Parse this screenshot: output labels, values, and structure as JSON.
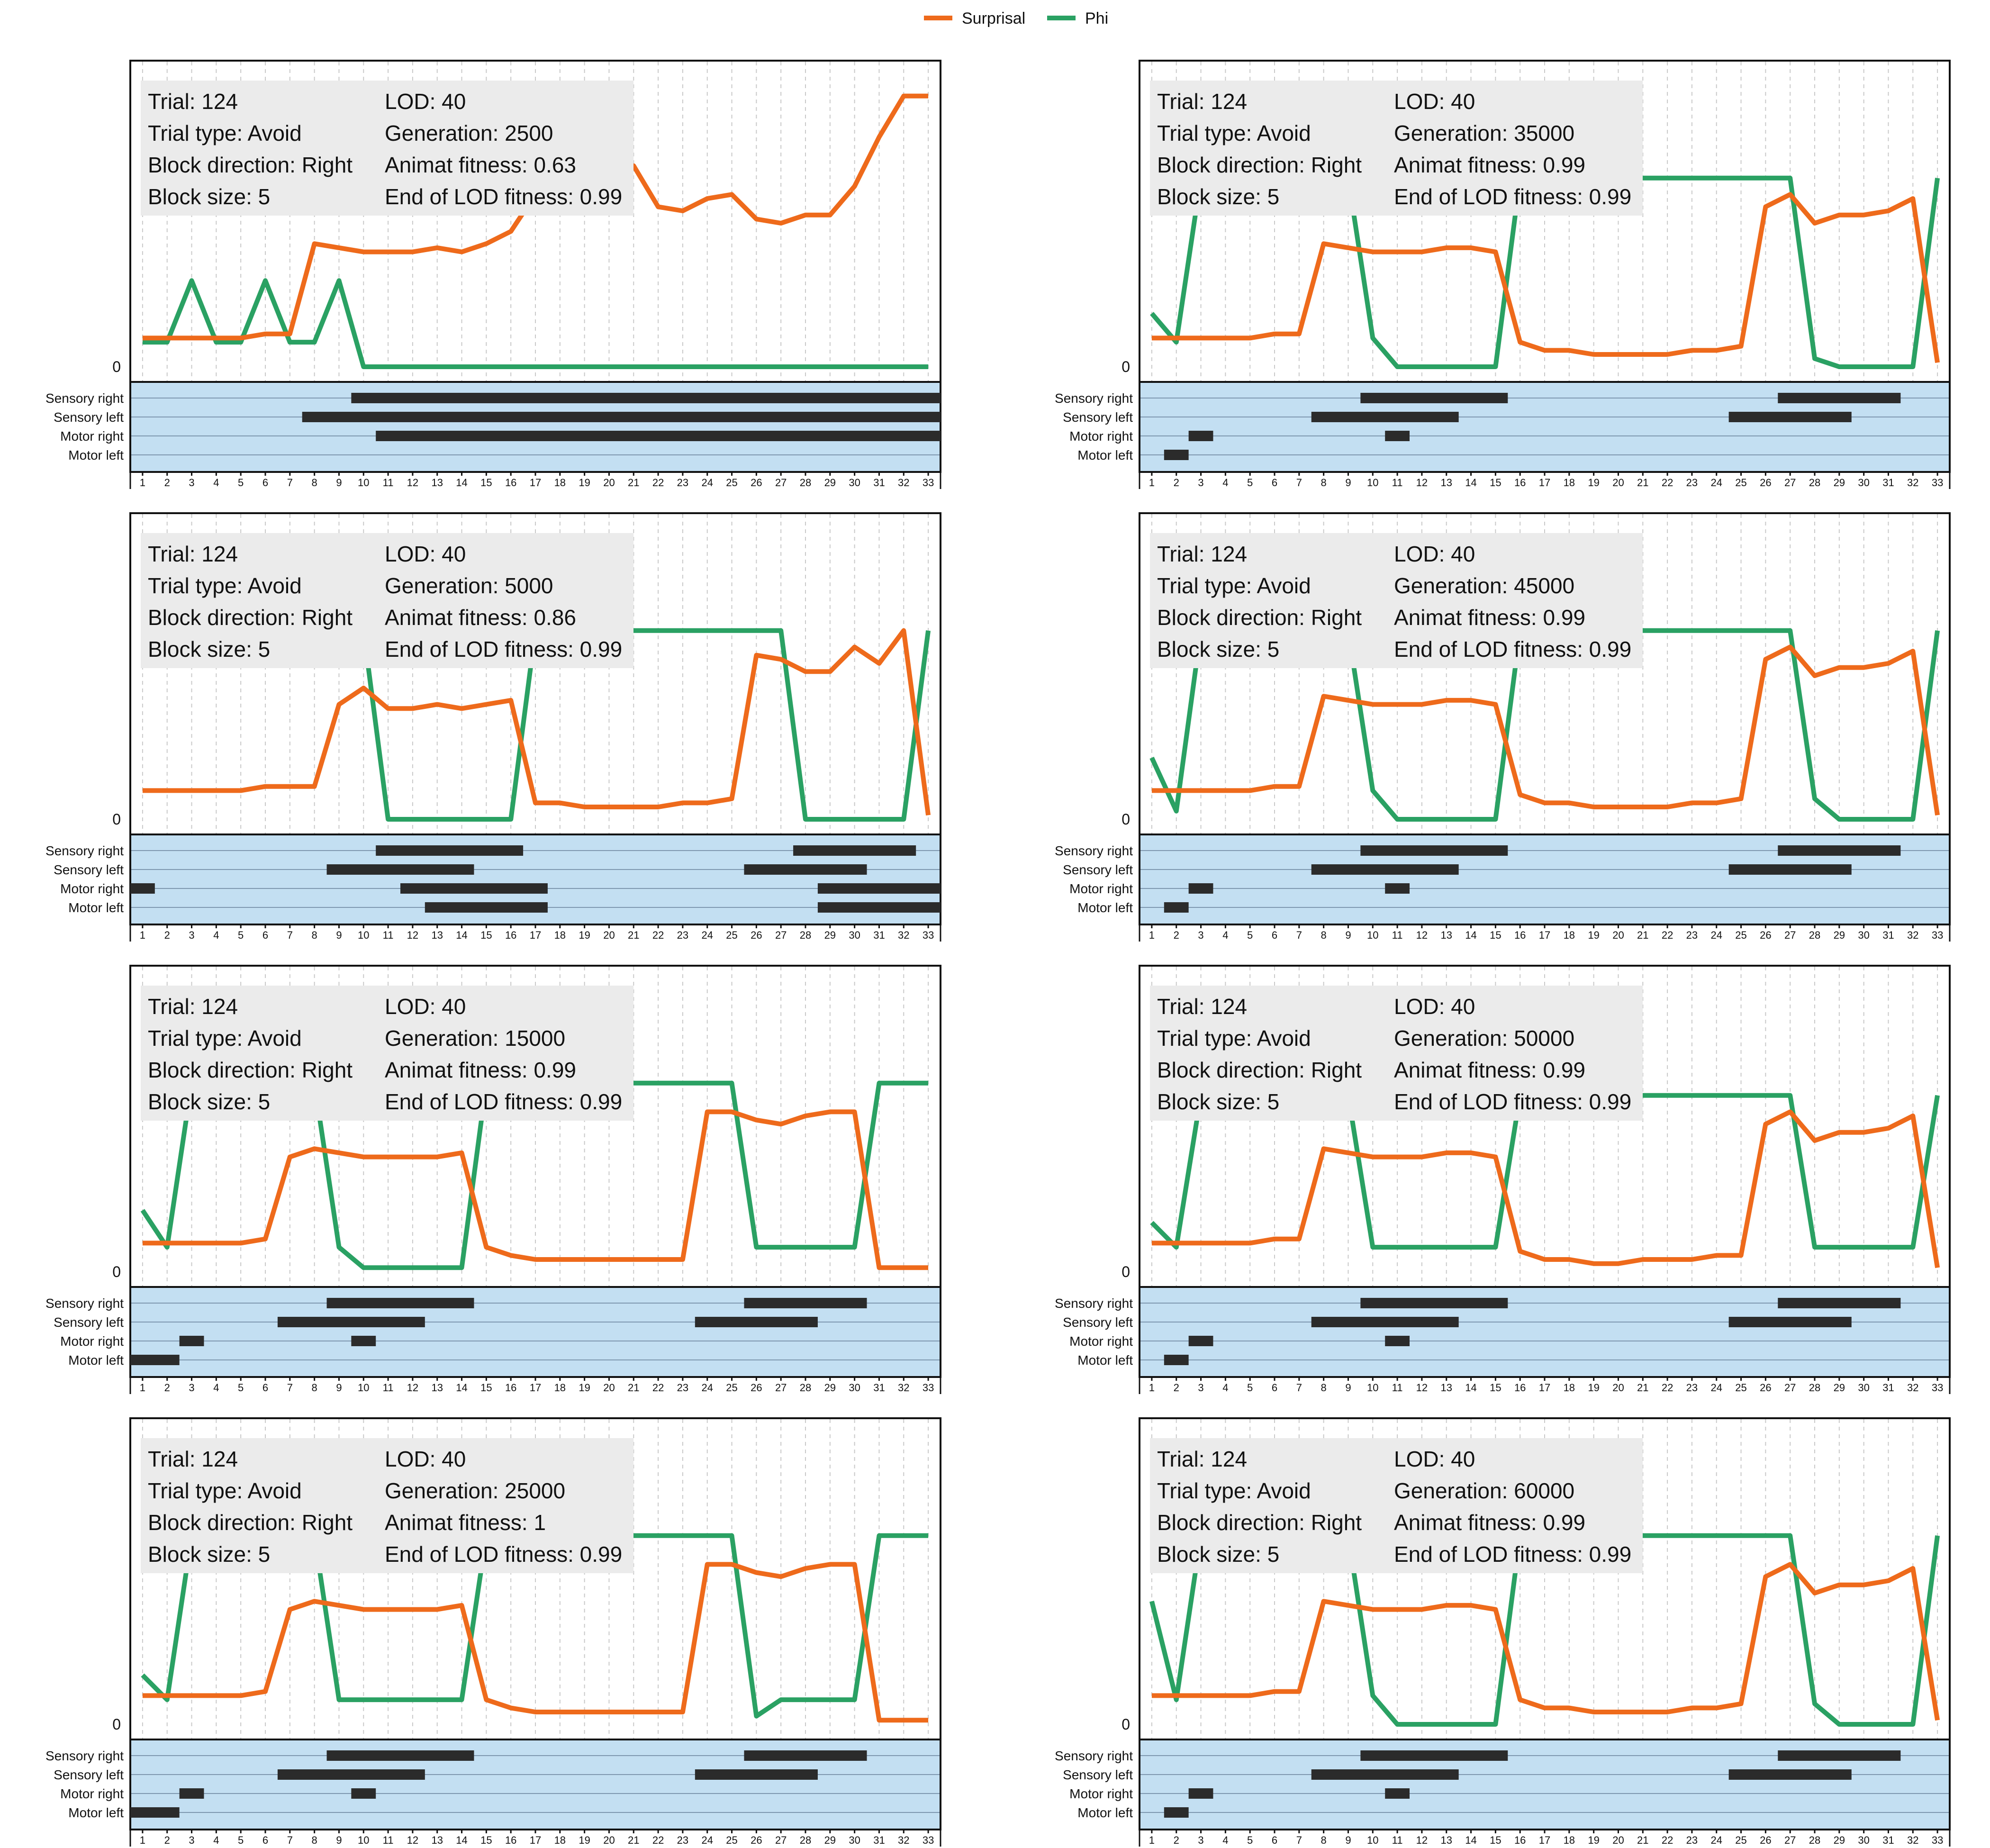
{
  "legend": {
    "surprisal_label": "Surprisal",
    "phi_label": "Phi",
    "surprisal_color": "#ee6a1b",
    "phi_color": "#2aa163"
  },
  "labels": {
    "trial": "Trial: ",
    "trial_type": "Trial type: ",
    "block_direction": "Block direction: ",
    "block_size": "Block size: ",
    "lod": "LOD: ",
    "generation": "Generation: ",
    "animat_fitness": "Animat fitness: ",
    "end_fitness": "End of LOD fitness: ",
    "zero": "0"
  },
  "rows": [
    "Sensory right",
    "Sensory left",
    "Motor right",
    "Motor left"
  ],
  "x_ticks": [
    1,
    2,
    3,
    4,
    5,
    6,
    7,
    8,
    9,
    10,
    11,
    12,
    13,
    14,
    15,
    16,
    17,
    18,
    19,
    20,
    21,
    22,
    23,
    24,
    25,
    26,
    27,
    28,
    29,
    30,
    31,
    32,
    33
  ],
  "chart_data": [
    {
      "type": "line",
      "info": {
        "trial": "124",
        "trial_type": "Avoid",
        "block_direction": "Right",
        "block_size": "5",
        "lod": "40",
        "generation": "2500",
        "animat_fitness": "0.63",
        "end_fitness": "0.99"
      },
      "series": [
        {
          "name": "Surprisal",
          "values": [
            0.07,
            0.07,
            0.07,
            0.07,
            0.07,
            0.08,
            0.08,
            0.3,
            0.29,
            0.28,
            0.28,
            0.28,
            0.29,
            0.28,
            0.3,
            0.33,
            0.42,
            0.48,
            0.58,
            0.47,
            0.49,
            0.39,
            0.38,
            0.41,
            0.42,
            0.36,
            0.35,
            0.37,
            0.37,
            0.44,
            0.56,
            0.66,
            0.66
          ]
        },
        {
          "name": "Phi",
          "values": [
            0.06,
            0.06,
            0.21,
            0.06,
            0.06,
            0.21,
            0.06,
            0.06,
            0.21,
            0,
            0,
            0,
            0,
            0,
            0,
            0,
            0,
            0,
            0,
            0,
            0,
            0,
            0,
            0,
            0,
            0,
            0,
            0,
            0,
            0,
            0,
            0,
            0
          ]
        }
      ],
      "bars": {
        "Sensory right": [
          [
            9.5,
            33.5
          ]
        ],
        "Sensory left": [
          [
            7.5,
            33.5
          ]
        ],
        "Motor right": [
          [
            10.5,
            33.5
          ]
        ],
        "Motor left": []
      }
    },
    {
      "type": "line",
      "info": {
        "trial": "124",
        "trial_type": "Avoid",
        "block_direction": "Right",
        "block_size": "5",
        "lod": "40",
        "generation": "35000",
        "animat_fitness": "0.99",
        "end_fitness": "0.99"
      },
      "series": [
        {
          "name": "Surprisal",
          "values": [
            0.07,
            0.07,
            0.07,
            0.07,
            0.07,
            0.08,
            0.08,
            0.3,
            0.29,
            0.28,
            0.28,
            0.28,
            0.29,
            0.29,
            0.28,
            0.06,
            0.04,
            0.04,
            0.03,
            0.03,
            0.03,
            0.03,
            0.04,
            0.04,
            0.05,
            0.39,
            0.42,
            0.35,
            0.37,
            0.37,
            0.38,
            0.41,
            0.01
          ]
        },
        {
          "name": "Phi",
          "values": [
            0.13,
            0.06,
            0.46,
            0.46,
            0.46,
            0.46,
            0.46,
            0.46,
            0.46,
            0.07,
            0,
            0,
            0,
            0,
            0,
            0.46,
            0.46,
            0.46,
            0.46,
            0.46,
            0.46,
            0.46,
            0.46,
            0.46,
            0.46,
            0.46,
            0.46,
            0.02,
            0,
            0,
            0,
            0,
            0.46
          ]
        }
      ],
      "bars": {
        "Sensory right": [
          [
            9.5,
            15.5
          ],
          [
            26.5,
            31.5
          ]
        ],
        "Sensory left": [
          [
            7.5,
            13.5
          ],
          [
            24.5,
            29.5
          ]
        ],
        "Motor right": [
          [
            2.5,
            3.5
          ],
          [
            10.5,
            11.5
          ]
        ],
        "Motor left": [
          [
            1.5,
            2.5
          ]
        ]
      }
    },
    {
      "type": "line",
      "info": {
        "trial": "124",
        "trial_type": "Avoid",
        "block_direction": "Right",
        "block_size": "5",
        "lod": "40",
        "generation": "5000",
        "animat_fitness": "0.86",
        "end_fitness": "0.99"
      },
      "series": [
        {
          "name": "Surprisal",
          "values": [
            0.07,
            0.07,
            0.07,
            0.07,
            0.07,
            0.08,
            0.08,
            0.08,
            0.28,
            0.32,
            0.27,
            0.27,
            0.28,
            0.27,
            0.28,
            0.29,
            0.04,
            0.04,
            0.03,
            0.03,
            0.03,
            0.03,
            0.04,
            0.04,
            0.05,
            0.4,
            0.39,
            0.36,
            0.36,
            0.42,
            0.38,
            0.46,
            0.01
          ]
        },
        {
          "name": "Phi",
          "values": [
            0.46,
            0.46,
            0.46,
            0.46,
            0.46,
            0.46,
            0.46,
            0.46,
            0.46,
            0.46,
            0,
            0,
            0,
            0,
            0,
            0,
            0.46,
            0.46,
            0.46,
            0.46,
            0.46,
            0.46,
            0.46,
            0.46,
            0.46,
            0.46,
            0.46,
            0,
            0,
            0,
            0,
            0,
            0.46
          ]
        }
      ],
      "bars": {
        "Sensory right": [
          [
            10.5,
            16.5
          ],
          [
            27.5,
            32.5
          ]
        ],
        "Sensory left": [
          [
            8.5,
            14.5
          ],
          [
            25.5,
            30.5
          ]
        ],
        "Motor right": [
          [
            0.5,
            1.5
          ],
          [
            11.5,
            17.5
          ],
          [
            28.5,
            33.5
          ]
        ],
        "Motor left": [
          [
            12.5,
            17.5
          ],
          [
            28.5,
            33.5
          ]
        ]
      }
    },
    {
      "type": "line",
      "info": {
        "trial": "124",
        "trial_type": "Avoid",
        "block_direction": "Right",
        "block_size": "5",
        "lod": "40",
        "generation": "45000",
        "animat_fitness": "0.99",
        "end_fitness": "0.99"
      },
      "series": [
        {
          "name": "Surprisal",
          "values": [
            0.07,
            0.07,
            0.07,
            0.07,
            0.07,
            0.08,
            0.08,
            0.3,
            0.29,
            0.28,
            0.28,
            0.28,
            0.29,
            0.29,
            0.28,
            0.06,
            0.04,
            0.04,
            0.03,
            0.03,
            0.03,
            0.03,
            0.04,
            0.04,
            0.05,
            0.39,
            0.42,
            0.35,
            0.37,
            0.37,
            0.38,
            0.41,
            0.01
          ]
        },
        {
          "name": "Phi",
          "values": [
            0.15,
            0.02,
            0.46,
            0.46,
            0.46,
            0.46,
            0.46,
            0.46,
            0.46,
            0.07,
            0,
            0,
            0,
            0,
            0,
            0.46,
            0.46,
            0.46,
            0.46,
            0.46,
            0.46,
            0.46,
            0.46,
            0.46,
            0.46,
            0.46,
            0.46,
            0.05,
            0,
            0,
            0,
            0,
            0.46
          ]
        }
      ],
      "bars": {
        "Sensory right": [
          [
            9.5,
            15.5
          ],
          [
            26.5,
            31.5
          ]
        ],
        "Sensory left": [
          [
            7.5,
            13.5
          ],
          [
            24.5,
            29.5
          ]
        ],
        "Motor right": [
          [
            2.5,
            3.5
          ],
          [
            10.5,
            11.5
          ]
        ],
        "Motor left": [
          [
            1.5,
            2.5
          ]
        ]
      }
    },
    {
      "type": "line",
      "info": {
        "trial": "124",
        "trial_type": "Avoid",
        "block_direction": "Right",
        "block_size": "5",
        "lod": "40",
        "generation": "15000",
        "animat_fitness": "0.99",
        "end_fitness": "0.99"
      },
      "series": [
        {
          "name": "Surprisal",
          "values": [
            0.07,
            0.07,
            0.07,
            0.07,
            0.07,
            0.08,
            0.28,
            0.3,
            0.29,
            0.28,
            0.28,
            0.28,
            0.28,
            0.29,
            0.06,
            0.04,
            0.03,
            0.03,
            0.03,
            0.03,
            0.03,
            0.03,
            0.03,
            0.39,
            0.39,
            0.37,
            0.36,
            0.38,
            0.39,
            0.39,
            0.01,
            0.01,
            0.01
          ]
        },
        {
          "name": "Phi",
          "values": [
            0.15,
            0.06,
            0.46,
            0.46,
            0.46,
            0.46,
            0.46,
            0.46,
            0.06,
            0.01,
            0.01,
            0.01,
            0.01,
            0.01,
            0.46,
            0.46,
            0.46,
            0.46,
            0.46,
            0.46,
            0.46,
            0.46,
            0.46,
            0.46,
            0.46,
            0.06,
            0.06,
            0.06,
            0.06,
            0.06,
            0.46,
            0.46,
            0.46
          ]
        }
      ],
      "bars": {
        "Sensory right": [
          [
            8.5,
            14.5
          ],
          [
            25.5,
            30.5
          ]
        ],
        "Sensory left": [
          [
            6.5,
            12.5
          ],
          [
            23.5,
            28.5
          ]
        ],
        "Motor right": [
          [
            2.5,
            3.5
          ],
          [
            9.5,
            10.5
          ]
        ],
        "Motor left": [
          [
            0.5,
            2.5
          ]
        ]
      }
    },
    {
      "type": "line",
      "info": {
        "trial": "124",
        "trial_type": "Avoid",
        "block_direction": "Right",
        "block_size": "5",
        "lod": "40",
        "generation": "50000",
        "animat_fitness": "0.99",
        "end_fitness": "0.99"
      },
      "series": [
        {
          "name": "Surprisal",
          "values": [
            0.07,
            0.07,
            0.07,
            0.07,
            0.07,
            0.08,
            0.08,
            0.3,
            0.29,
            0.28,
            0.28,
            0.28,
            0.29,
            0.29,
            0.28,
            0.05,
            0.03,
            0.03,
            0.02,
            0.02,
            0.03,
            0.03,
            0.03,
            0.04,
            0.04,
            0.36,
            0.39,
            0.32,
            0.34,
            0.34,
            0.35,
            0.38,
            0.01
          ]
        },
        {
          "name": "Phi",
          "values": [
            0.12,
            0.06,
            0.43,
            0.43,
            0.43,
            0.43,
            0.43,
            0.43,
            0.43,
            0.06,
            0.06,
            0.06,
            0.06,
            0.06,
            0.06,
            0.43,
            0.43,
            0.43,
            0.43,
            0.43,
            0.43,
            0.43,
            0.43,
            0.43,
            0.43,
            0.43,
            0.43,
            0.06,
            0.06,
            0.06,
            0.06,
            0.06,
            0.43
          ]
        }
      ],
      "bars": {
        "Sensory right": [
          [
            9.5,
            15.5
          ],
          [
            26.5,
            31.5
          ]
        ],
        "Sensory left": [
          [
            7.5,
            13.5
          ],
          [
            24.5,
            29.5
          ]
        ],
        "Motor right": [
          [
            2.5,
            3.5
          ],
          [
            10.5,
            11.5
          ]
        ],
        "Motor left": [
          [
            1.5,
            2.5
          ]
        ]
      }
    },
    {
      "type": "line",
      "info": {
        "trial": "124",
        "trial_type": "Avoid",
        "block_direction": "Right",
        "block_size": "5",
        "lod": "40",
        "generation": "25000",
        "animat_fitness": "1",
        "end_fitness": "0.99"
      },
      "series": [
        {
          "name": "Surprisal",
          "values": [
            0.07,
            0.07,
            0.07,
            0.07,
            0.07,
            0.08,
            0.28,
            0.3,
            0.29,
            0.28,
            0.28,
            0.28,
            0.28,
            0.29,
            0.06,
            0.04,
            0.03,
            0.03,
            0.03,
            0.03,
            0.03,
            0.03,
            0.03,
            0.39,
            0.39,
            0.37,
            0.36,
            0.38,
            0.39,
            0.39,
            0.01,
            0.01,
            0.01
          ]
        },
        {
          "name": "Phi",
          "values": [
            0.12,
            0.06,
            0.46,
            0.46,
            0.46,
            0.46,
            0.46,
            0.46,
            0.06,
            0.06,
            0.06,
            0.06,
            0.06,
            0.06,
            0.46,
            0.46,
            0.46,
            0.46,
            0.46,
            0.46,
            0.46,
            0.46,
            0.46,
            0.46,
            0.46,
            0.02,
            0.06,
            0.06,
            0.06,
            0.06,
            0.46,
            0.46,
            0.46
          ]
        }
      ],
      "bars": {
        "Sensory right": [
          [
            8.5,
            14.5
          ],
          [
            25.5,
            30.5
          ]
        ],
        "Sensory left": [
          [
            6.5,
            12.5
          ],
          [
            23.5,
            28.5
          ]
        ],
        "Motor right": [
          [
            2.5,
            3.5
          ],
          [
            9.5,
            10.5
          ]
        ],
        "Motor left": [
          [
            0.5,
            2.5
          ]
        ]
      }
    },
    {
      "type": "line",
      "info": {
        "trial": "124",
        "trial_type": "Avoid",
        "block_direction": "Right",
        "block_size": "5",
        "lod": "40",
        "generation": "60000",
        "animat_fitness": "0.99",
        "end_fitness": "0.99"
      },
      "series": [
        {
          "name": "Surprisal",
          "values": [
            0.07,
            0.07,
            0.07,
            0.07,
            0.07,
            0.08,
            0.08,
            0.3,
            0.29,
            0.28,
            0.28,
            0.28,
            0.29,
            0.29,
            0.28,
            0.06,
            0.04,
            0.04,
            0.03,
            0.03,
            0.03,
            0.03,
            0.04,
            0.04,
            0.05,
            0.36,
            0.39,
            0.32,
            0.34,
            0.34,
            0.35,
            0.38,
            0.01
          ]
        },
        {
          "name": "Phi",
          "values": [
            0.3,
            0.06,
            0.46,
            0.46,
            0.46,
            0.46,
            0.46,
            0.46,
            0.46,
            0.07,
            0,
            0,
            0,
            0,
            0,
            0.46,
            0.46,
            0.46,
            0.46,
            0.46,
            0.46,
            0.46,
            0.46,
            0.46,
            0.46,
            0.46,
            0.46,
            0.05,
            0,
            0,
            0,
            0,
            0.46
          ]
        }
      ],
      "bars": {
        "Sensory right": [
          [
            9.5,
            15.5
          ],
          [
            26.5,
            31.5
          ]
        ],
        "Sensory left": [
          [
            7.5,
            13.5
          ],
          [
            24.5,
            29.5
          ]
        ],
        "Motor right": [
          [
            2.5,
            3.5
          ],
          [
            10.5,
            11.5
          ]
        ],
        "Motor left": [
          [
            1.5,
            2.5
          ]
        ]
      }
    }
  ]
}
